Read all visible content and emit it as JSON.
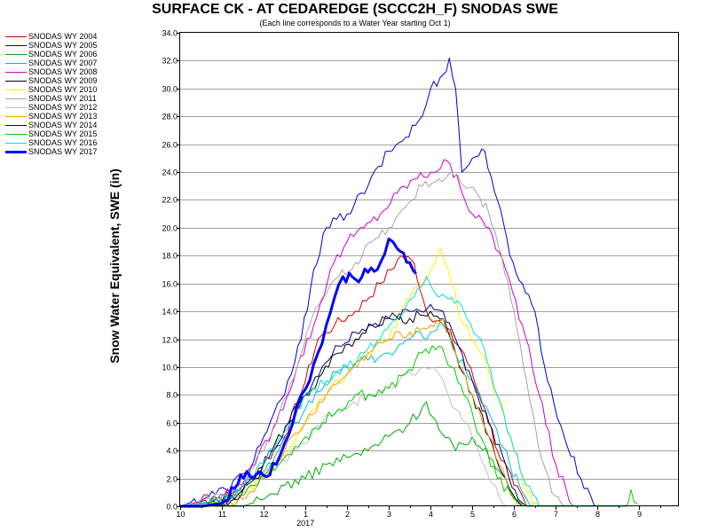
{
  "chart_data": {
    "type": "line",
    "title": "SURFACE CK - AT CEDAREDGE (SCCC2H_F) SNODAS SWE",
    "subtitle": "(Each line corresponds to a Water Year starting Oct 1)",
    "ylabel": "Snow Water Equivalent, SWE (in)",
    "xlabel": "",
    "ylim": [
      0,
      34
    ],
    "xlim": [
      10,
      10.95
    ],
    "yticks": [
      "0.0",
      "2.0",
      "4.0",
      "6.0",
      "8.0",
      "10.0",
      "12.0",
      "14.0",
      "16.0",
      "18.0",
      "20.0",
      "22.0",
      "24.0",
      "26.0",
      "28.0",
      "30.0",
      "32.0",
      "34.0"
    ],
    "xticks": [
      {
        "label": "10",
        "x": 10
      },
      {
        "label": "11",
        "x": 11
      },
      {
        "label": "12",
        "x": 12
      },
      {
        "label": "1",
        "x": 13
      },
      {
        "label": "2",
        "x": 14
      },
      {
        "label": "3",
        "x": 15
      },
      {
        "label": "4",
        "x": 16
      },
      {
        "label": "5",
        "x": 17
      },
      {
        "label": "6",
        "x": 18
      },
      {
        "label": "7",
        "x": 19
      },
      {
        "label": "8",
        "x": 20
      },
      {
        "label": "9",
        "x": 21
      }
    ],
    "year_label": {
      "label": "2017",
      "x": 13
    },
    "grid": "horizontal",
    "legend_position": "top-left outside",
    "series": [
      {
        "name": "SNODAS WY 2004",
        "color": "#cc0000",
        "width": 1,
        "points": [
          [
            10,
            0
          ],
          [
            11.2,
            0.8
          ],
          [
            11.7,
            2
          ],
          [
            12,
            3
          ],
          [
            12.5,
            5
          ],
          [
            13,
            9
          ],
          [
            13.3,
            12
          ],
          [
            13.7,
            13
          ],
          [
            14.2,
            14
          ],
          [
            14.8,
            16
          ],
          [
            15.3,
            18
          ],
          [
            15.6,
            17.5
          ],
          [
            15.9,
            14
          ],
          [
            16.3,
            13
          ],
          [
            16.8,
            11
          ],
          [
            17.3,
            7
          ],
          [
            17.6,
            4
          ],
          [
            18,
            1.5
          ],
          [
            18.3,
            0
          ]
        ]
      },
      {
        "name": "SNODAS WY 2005",
        "color": "#0000cc",
        "width": 1,
        "points": [
          [
            10,
            0
          ],
          [
            11.1,
            1.2
          ],
          [
            11.6,
            2.5
          ],
          [
            12,
            5
          ],
          [
            12.5,
            8
          ],
          [
            12.9,
            12
          ],
          [
            13.2,
            17
          ],
          [
            13.5,
            20
          ],
          [
            14,
            21
          ],
          [
            14.5,
            23
          ],
          [
            15,
            25.5
          ],
          [
            15.4,
            26.5
          ],
          [
            15.8,
            28
          ],
          [
            16,
            30
          ],
          [
            16.3,
            31
          ],
          [
            16.45,
            32.2
          ],
          [
            16.6,
            30
          ],
          [
            16.75,
            24
          ],
          [
            17,
            25
          ],
          [
            17.3,
            25.5
          ],
          [
            17.6,
            22
          ],
          [
            17.9,
            18
          ],
          [
            18.2,
            16
          ],
          [
            18.5,
            14
          ],
          [
            18.8,
            9
          ],
          [
            19.2,
            5
          ],
          [
            19.6,
            2
          ],
          [
            20,
            0
          ]
        ]
      },
      {
        "name": "SNODAS WY 2006",
        "color": "#00aa00",
        "width": 1,
        "points": [
          [
            10,
            0
          ],
          [
            11.5,
            0
          ],
          [
            12,
            0.5
          ],
          [
            12.5,
            1.5
          ],
          [
            13,
            2
          ],
          [
            13.5,
            3
          ],
          [
            14,
            3.5
          ],
          [
            14.5,
            4
          ],
          [
            15,
            5
          ],
          [
            15.5,
            6
          ],
          [
            15.9,
            7.5
          ],
          [
            16.2,
            5.5
          ],
          [
            16.6,
            4
          ],
          [
            17,
            5
          ],
          [
            17.4,
            3.5
          ],
          [
            17.8,
            2
          ],
          [
            18.2,
            0
          ]
        ]
      },
      {
        "name": "SNODAS WY 2007",
        "color": "#00c0c0",
        "width": 1,
        "points": [
          [
            10,
            0
          ],
          [
            11.1,
            0.5
          ],
          [
            11.8,
            2
          ],
          [
            12.2,
            3
          ],
          [
            12.6,
            5
          ],
          [
            13,
            7
          ],
          [
            13.5,
            9
          ],
          [
            14,
            10
          ],
          [
            14.5,
            10.5
          ],
          [
            15,
            11
          ],
          [
            15.5,
            12
          ],
          [
            16,
            12.5
          ],
          [
            16.3,
            13
          ],
          [
            16.6,
            11
          ],
          [
            17,
            9
          ],
          [
            17.5,
            6
          ],
          [
            17.9,
            3
          ],
          [
            18.2,
            1
          ],
          [
            18.4,
            0
          ]
        ]
      },
      {
        "name": "SNODAS WY 2008",
        "color": "#cc00cc",
        "width": 1,
        "points": [
          [
            10,
            0
          ],
          [
            11.3,
            1
          ],
          [
            11.8,
            3
          ],
          [
            12.3,
            6
          ],
          [
            12.8,
            10
          ],
          [
            13.2,
            13
          ],
          [
            13.6,
            17
          ],
          [
            14,
            19
          ],
          [
            14.4,
            20
          ],
          [
            14.8,
            21
          ],
          [
            15.2,
            22.5
          ],
          [
            15.6,
            23.5
          ],
          [
            16,
            24
          ],
          [
            16.4,
            24.8
          ],
          [
            16.7,
            23
          ],
          [
            17,
            21
          ],
          [
            17.4,
            20
          ],
          [
            17.8,
            17
          ],
          [
            18.2,
            13
          ],
          [
            18.6,
            8
          ],
          [
            19,
            3
          ],
          [
            19.4,
            0
          ]
        ]
      },
      {
        "name": "SNODAS WY 2009",
        "color": "#000000",
        "width": 1,
        "points": [
          [
            10,
            0
          ],
          [
            11.3,
            0.5
          ],
          [
            11.8,
            2
          ],
          [
            12.2,
            4
          ],
          [
            12.6,
            6
          ],
          [
            13,
            8
          ],
          [
            13.4,
            9.5
          ],
          [
            13.8,
            11
          ],
          [
            14.2,
            12
          ],
          [
            14.6,
            13
          ],
          [
            15,
            13.5
          ],
          [
            15.5,
            13.5
          ],
          [
            16,
            14
          ],
          [
            16.3,
            13.5
          ],
          [
            16.6,
            11
          ],
          [
            17,
            8
          ],
          [
            17.4,
            5
          ],
          [
            17.8,
            2
          ],
          [
            18.2,
            0
          ]
        ]
      },
      {
        "name": "SNODAS WY 2010",
        "color": "#ffee00",
        "width": 1,
        "points": [
          [
            10,
            0
          ],
          [
            11.4,
            0.5
          ],
          [
            12,
            2
          ],
          [
            12.6,
            4
          ],
          [
            13,
            6
          ],
          [
            13.5,
            8
          ],
          [
            14,
            9.5
          ],
          [
            14.5,
            11
          ],
          [
            15,
            12
          ],
          [
            15.5,
            15
          ],
          [
            16,
            17
          ],
          [
            16.25,
            18.5
          ],
          [
            16.5,
            16
          ],
          [
            16.8,
            13
          ],
          [
            17.2,
            11
          ],
          [
            17.6,
            8
          ],
          [
            18,
            4
          ],
          [
            18.3,
            1
          ],
          [
            18.6,
            0
          ]
        ]
      },
      {
        "name": "SNODAS WY 2011",
        "color": "#b0a0a0",
        "width": 1,
        "points": [
          [
            10,
            0
          ],
          [
            11.2,
            0.5
          ],
          [
            11.6,
            2
          ],
          [
            12,
            4
          ],
          [
            12.4,
            7
          ],
          [
            12.8,
            10
          ],
          [
            13.1,
            13
          ],
          [
            13.4,
            15
          ],
          [
            13.8,
            16.5
          ],
          [
            14.2,
            17.5
          ],
          [
            14.6,
            19
          ],
          [
            15,
            20
          ],
          [
            15.4,
            21.5
          ],
          [
            15.8,
            23
          ],
          [
            16.2,
            23.5
          ],
          [
            16.5,
            24
          ],
          [
            16.8,
            23
          ],
          [
            17.1,
            22.5
          ],
          [
            17.4,
            21
          ],
          [
            17.7,
            18
          ],
          [
            18,
            14
          ],
          [
            18.3,
            9
          ],
          [
            18.6,
            4
          ],
          [
            18.9,
            1
          ],
          [
            19.2,
            0
          ]
        ]
      },
      {
        "name": "SNODAS WY 2012",
        "color": "#c0c0c0",
        "width": 1,
        "points": [
          [
            10,
            0
          ],
          [
            11.2,
            1
          ],
          [
            11.8,
            2
          ],
          [
            12.3,
            3
          ],
          [
            12.8,
            4
          ],
          [
            13.2,
            5.5
          ],
          [
            13.6,
            6.5
          ],
          [
            14,
            7
          ],
          [
            14.5,
            8
          ],
          [
            15,
            8.5
          ],
          [
            15.4,
            9.5
          ],
          [
            15.8,
            10
          ],
          [
            16.2,
            9.5
          ],
          [
            16.6,
            7
          ],
          [
            17,
            5
          ],
          [
            17.4,
            2
          ],
          [
            17.8,
            0
          ]
        ]
      },
      {
        "name": "SNODAS WY 2013",
        "color": "#ff9900",
        "width": 1,
        "points": [
          [
            10,
            0
          ],
          [
            11.5,
            0.5
          ],
          [
            12,
            2
          ],
          [
            12.5,
            4
          ],
          [
            13,
            6
          ],
          [
            13.5,
            8
          ],
          [
            14,
            9.5
          ],
          [
            14.5,
            11
          ],
          [
            15,
            12
          ],
          [
            15.5,
            12.5
          ],
          [
            16,
            13
          ],
          [
            16.3,
            13.5
          ],
          [
            16.6,
            11
          ],
          [
            17,
            8
          ],
          [
            17.4,
            5
          ],
          [
            17.8,
            2
          ],
          [
            18.1,
            0
          ]
        ]
      },
      {
        "name": "SNODAS WY 2014",
        "color": "#000080",
        "width": 1,
        "points": [
          [
            10,
            0
          ],
          [
            11.3,
            0.5
          ],
          [
            11.8,
            2
          ],
          [
            12.2,
            4
          ],
          [
            12.6,
            6
          ],
          [
            13,
            8
          ],
          [
            13.4,
            10
          ],
          [
            13.8,
            11.5
          ],
          [
            14.2,
            12.5
          ],
          [
            14.6,
            13
          ],
          [
            15,
            13.5
          ],
          [
            15.5,
            14
          ],
          [
            16,
            14.5
          ],
          [
            16.3,
            14
          ],
          [
            16.6,
            12
          ],
          [
            17,
            9
          ],
          [
            17.4,
            6
          ],
          [
            17.8,
            3
          ],
          [
            18.1,
            0.5
          ],
          [
            18.3,
            0
          ]
        ]
      },
      {
        "name": "SNODAS WY 2015",
        "color": "#00cc00",
        "width": 1,
        "points": [
          [
            10,
            0
          ],
          [
            11.2,
            0.5
          ],
          [
            11.7,
            1.5
          ],
          [
            12.1,
            2.5
          ],
          [
            12.5,
            3.5
          ],
          [
            13,
            5
          ],
          [
            13.4,
            6
          ],
          [
            13.8,
            7
          ],
          [
            14.2,
            8
          ],
          [
            14.6,
            8
          ],
          [
            15,
            8.5
          ],
          [
            15.4,
            9.5
          ],
          [
            15.8,
            11
          ],
          [
            16.2,
            11.5
          ],
          [
            16.5,
            10
          ],
          [
            16.8,
            8
          ],
          [
            17.2,
            5
          ],
          [
            17.6,
            2
          ],
          [
            18,
            0.5
          ],
          [
            18.3,
            0
          ],
          [
            20.7,
            0
          ],
          [
            20.8,
            1.2
          ],
          [
            20.95,
            0.2
          ]
        ]
      },
      {
        "name": "SNODAS WY 2016",
        "color": "#00e0e0",
        "width": 1,
        "points": [
          [
            10,
            0
          ],
          [
            11.1,
            0.5
          ],
          [
            11.6,
            2
          ],
          [
            12,
            3
          ],
          [
            12.4,
            5
          ],
          [
            12.8,
            7
          ],
          [
            13.2,
            8.5
          ],
          [
            13.6,
            9
          ],
          [
            14,
            10
          ],
          [
            14.4,
            11
          ],
          [
            14.8,
            12
          ],
          [
            15.2,
            13.5
          ],
          [
            15.6,
            15
          ],
          [
            15.9,
            16.5
          ],
          [
            16.2,
            15
          ],
          [
            16.5,
            15
          ],
          [
            16.8,
            14
          ],
          [
            17.2,
            12
          ],
          [
            17.6,
            8
          ],
          [
            18,
            4
          ],
          [
            18.3,
            1.5
          ],
          [
            18.6,
            0
          ]
        ]
      },
      {
        "name": "SNODAS WY 2017",
        "color": "#0000ff",
        "width": 3,
        "points": [
          [
            10,
            0
          ],
          [
            10.5,
            0
          ],
          [
            11,
            0.2
          ],
          [
            11.3,
            1.3
          ],
          [
            11.6,
            2.5
          ],
          [
            12,
            2.2
          ],
          [
            12.3,
            3
          ],
          [
            12.5,
            4.5
          ],
          [
            12.7,
            6
          ],
          [
            12.9,
            8
          ],
          [
            13.1,
            9
          ],
          [
            13.3,
            11
          ],
          [
            13.5,
            13
          ],
          [
            13.7,
            15
          ],
          [
            13.9,
            16.5
          ],
          [
            14.2,
            16.3
          ],
          [
            14.5,
            16.8
          ],
          [
            14.8,
            17.5
          ],
          [
            15.0,
            19.2
          ],
          [
            15.2,
            18.5
          ],
          [
            15.35,
            18.2
          ],
          [
            15.5,
            17.5
          ],
          [
            15.65,
            16.7
          ]
        ]
      }
    ]
  }
}
